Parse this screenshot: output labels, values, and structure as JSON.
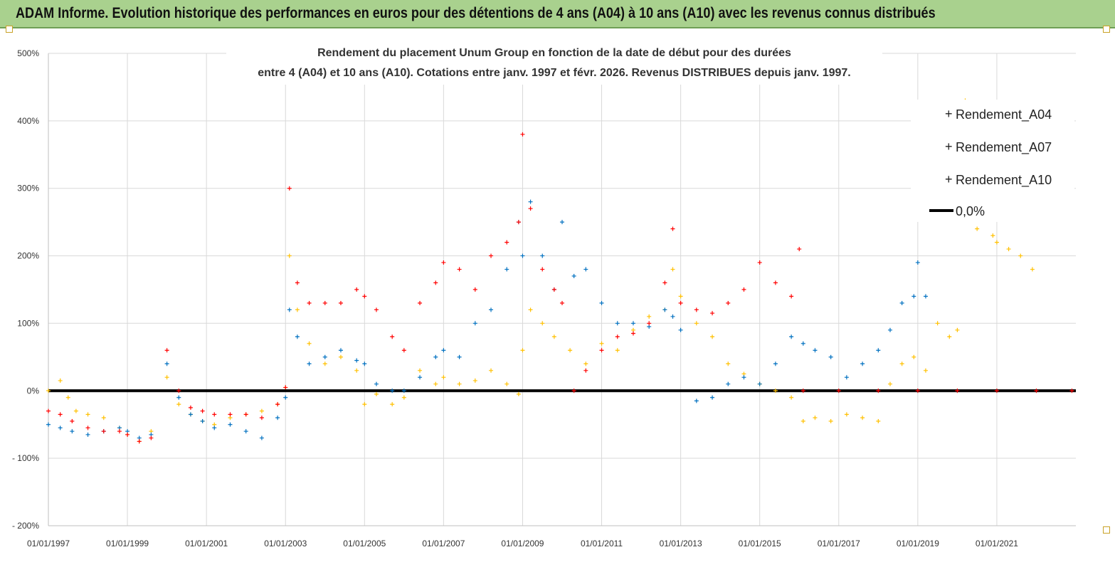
{
  "banner": {
    "title": "ADAM Informe. Evolution historique des performances en euros pour des détentions de 4 ans (A04) à 10 ans (A10) avec les revenus connus distribués"
  },
  "colors": {
    "banner_bg": "#a9d18e",
    "a04": "#ffc000",
    "a07": "#0070c0",
    "a10": "#ff0000",
    "zero": "#000000",
    "grid": "#d9d9d9"
  },
  "chart_data": {
    "type": "scatter",
    "title_lines": [
      "Rendement du placement Unum Group en fonction de la date de début pour des durées",
      "entre 4 (A04) et 10 ans (A10).  Cotations entre janv. 1997 et févr. 2026. Revenus DISTRIBUES depuis janv. 1997."
    ],
    "xlabel": "",
    "ylabel": "",
    "x_range": [
      1997.0,
      2023.0
    ],
    "ylim": [
      -200,
      500
    ],
    "y_ticks": [
      500,
      400,
      300,
      200,
      100,
      0,
      -100,
      -200
    ],
    "y_tick_labels": [
      "500%",
      "400%",
      "300%",
      "200%",
      "100%",
      "0%",
      "- 100%",
      "- 200%"
    ],
    "x_tick_values": [
      1997,
      1999,
      2001,
      2003,
      2005,
      2007,
      2009,
      2011,
      2013,
      2015,
      2017,
      2019,
      2021
    ],
    "x_tick_labels": [
      "01/01/1997",
      "01/01/1999",
      "01/01/2001",
      "01/01/2003",
      "01/01/2005",
      "01/01/2007",
      "01/01/2009",
      "01/01/2011",
      "01/01/2013",
      "01/01/2015",
      "01/01/2017",
      "01/01/2019",
      "01/01/2021"
    ],
    "grid": true,
    "legend_position": "top-right",
    "series": [
      {
        "name": "Rendement_A04",
        "marker": "+",
        "x": [
          1997.0,
          1997.3,
          1997.5,
          1997.7,
          1998.0,
          1998.4,
          1998.8,
          1999.0,
          1999.3,
          1999.6,
          2000.0,
          2000.3,
          2000.6,
          2000.9,
          2001.2,
          2001.6,
          2002.0,
          2002.4,
          2002.8,
          2003.0,
          2003.1,
          2003.3,
          2003.6,
          2004.0,
          2004.4,
          2004.8,
          2005.0,
          2005.3,
          2005.7,
          2006.0,
          2006.4,
          2006.8,
          2007.0,
          2007.4,
          2007.8,
          2008.2,
          2008.6,
          2008.9,
          2009.0,
          2009.2,
          2009.5,
          2009.8,
          2010.2,
          2010.6,
          2011.0,
          2011.4,
          2011.8,
          2012.2,
          2012.6,
          2012.8,
          2013.0,
          2013.4,
          2013.8,
          2014.2,
          2014.6,
          2015.0,
          2015.4,
          2015.8,
          2016.1,
          2016.4,
          2016.8,
          2017.2,
          2017.6,
          2018.0,
          2018.3,
          2018.6,
          2018.9,
          2019.2,
          2019.5,
          2019.8,
          2020.0,
          2020.2,
          2020.5,
          2020.9,
          2021.0,
          2021.3,
          2021.6,
          2021.9
        ],
        "y": [
          0,
          15,
          -10,
          -30,
          -35,
          -40,
          -55,
          -65,
          -75,
          -60,
          20,
          -20,
          -35,
          -45,
          -50,
          -40,
          -35,
          -30,
          -20,
          5,
          200,
          120,
          70,
          40,
          50,
          30,
          -20,
          -5,
          -20,
          -10,
          30,
          10,
          20,
          10,
          15,
          30,
          10,
          -5,
          60,
          120,
          100,
          80,
          60,
          40,
          70,
          60,
          90,
          110,
          120,
          180,
          140,
          100,
          80,
          40,
          25,
          10,
          0,
          -10,
          -45,
          -40,
          -45,
          -35,
          -40,
          -45,
          10,
          40,
          50,
          30,
          100,
          80,
          90,
          430,
          240,
          230,
          220,
          210,
          200,
          180
        ]
      },
      {
        "name": "Rendement_A07",
        "marker": "+",
        "x": [
          1997.0,
          1997.3,
          1997.6,
          1998.0,
          1998.4,
          1998.8,
          1999.0,
          1999.3,
          1999.6,
          2000.0,
          2000.3,
          2000.6,
          2000.9,
          2001.2,
          2001.6,
          2002.0,
          2002.4,
          2002.8,
          2003.0,
          2003.1,
          2003.3,
          2003.6,
          2004.0,
          2004.4,
          2004.8,
          2005.0,
          2005.3,
          2005.7,
          2006.0,
          2006.4,
          2006.8,
          2007.0,
          2007.4,
          2007.8,
          2008.2,
          2008.6,
          2008.9,
          2009.0,
          2009.2,
          2009.5,
          2009.8,
          2010.0,
          2010.3,
          2010.6,
          2011.0,
          2011.4,
          2011.8,
          2012.2,
          2012.6,
          2012.8,
          2013.0,
          2013.4,
          2013.8,
          2014.2,
          2014.6,
          2015.0,
          2015.4,
          2015.8,
          2016.1,
          2016.4,
          2016.8,
          2017.2,
          2017.6,
          2018.0,
          2018.3,
          2018.6,
          2018.9,
          2019.0,
          2019.2
        ],
        "y": [
          -50,
          -55,
          -60,
          -65,
          -60,
          -55,
          -60,
          -70,
          -65,
          40,
          -10,
          -35,
          -45,
          -55,
          -50,
          -60,
          -70,
          -40,
          -10,
          120,
          80,
          40,
          50,
          60,
          45,
          40,
          10,
          0,
          0,
          20,
          50,
          60,
          50,
          100,
          120,
          180,
          250,
          200,
          280,
          200,
          150,
          250,
          170,
          180,
          130,
          100,
          100,
          95,
          120,
          110,
          90,
          -15,
          -10,
          10,
          20,
          10,
          40,
          80,
          70,
          60,
          50,
          20,
          40,
          60,
          90,
          130,
          140,
          190,
          140
        ]
      },
      {
        "name": "Rendement_A10",
        "marker": "+",
        "x": [
          1997.0,
          1997.3,
          1997.6,
          1998.0,
          1998.4,
          1998.8,
          1999.0,
          1999.3,
          1999.6,
          2000.0,
          2000.3,
          2000.6,
          2000.9,
          2001.2,
          2001.6,
          2002.0,
          2002.4,
          2002.8,
          2003.0,
          2003.1,
          2003.3,
          2003.6,
          2004.0,
          2004.4,
          2004.8,
          2005.0,
          2005.3,
          2005.7,
          2006.0,
          2006.4,
          2006.8,
          2007.0,
          2007.4,
          2007.8,
          2008.2,
          2008.6,
          2008.9,
          2009.0,
          2009.2,
          2009.5,
          2009.8,
          2010.0,
          2010.3,
          2010.6,
          2011.0,
          2011.4,
          2011.8,
          2012.2,
          2012.6,
          2012.8,
          2013.0,
          2013.4,
          2013.8,
          2014.2,
          2014.6,
          2015.0,
          2015.4,
          2015.8,
          2016.0,
          2016.1,
          2017.0,
          2018.0,
          2019.0,
          2020.0,
          2021.0,
          2022.0,
          2022.9
        ],
        "y": [
          -30,
          -35,
          -45,
          -55,
          -60,
          -60,
          -65,
          -75,
          -70,
          60,
          0,
          -25,
          -30,
          -35,
          -35,
          -35,
          -40,
          -20,
          5,
          300,
          160,
          130,
          130,
          130,
          150,
          140,
          120,
          80,
          60,
          130,
          160,
          190,
          180,
          150,
          200,
          220,
          250,
          380,
          270,
          180,
          150,
          130,
          0,
          30,
          60,
          80,
          85,
          100,
          160,
          240,
          130,
          120,
          115,
          130,
          150,
          190,
          160,
          140,
          210,
          0,
          0,
          0,
          0,
          0,
          0,
          0,
          0
        ]
      }
    ],
    "zero_line": {
      "name": "0,0%",
      "y": 0
    }
  }
}
